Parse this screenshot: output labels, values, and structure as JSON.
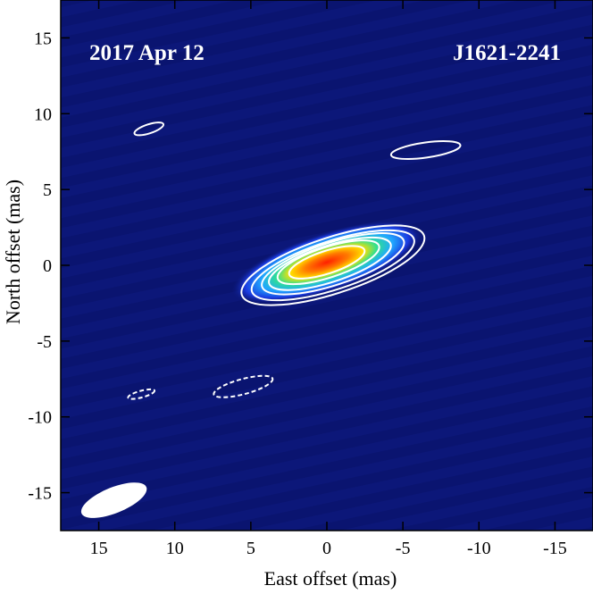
{
  "chart_data": {
    "type": "heatmap",
    "title": "",
    "xlabel": "East offset (mas)",
    "ylabel": "North offset (mas)",
    "xlim": [
      17.5,
      -17.5
    ],
    "ylim": [
      -17.5,
      17.5
    ],
    "x_ticks": [
      15,
      10,
      5,
      0,
      -5,
      -10,
      -15
    ],
    "y_ticks": [
      15,
      10,
      5,
      0,
      -5,
      -10,
      -15
    ],
    "x_tick_labels": [
      "15",
      "10",
      "5",
      "0",
      "-5",
      "-10",
      "-15"
    ],
    "y_tick_labels": [
      "15",
      "10",
      "5",
      "0",
      "-5",
      "-10",
      "-15"
    ],
    "annotations": {
      "date": "2017 Apr 12",
      "source": "J1621-2241"
    },
    "background_color": "#0a1470",
    "source_component": {
      "x": 0.0,
      "y": 0.2,
      "peak_color": "#ff2000"
    },
    "colormap": [
      "#0a1470",
      "#1b3ae0",
      "#20a8ff",
      "#30e090",
      "#ffe000",
      "#ff7a00",
      "#ff2000"
    ],
    "contours": [
      {
        "level": 1,
        "rx": 6.3,
        "ry": 1.85,
        "angle_deg": 18,
        "x": -0.4,
        "y": 0.0
      },
      {
        "level": 2,
        "rx": 5.6,
        "ry": 1.6,
        "angle_deg": 18,
        "x": -0.4,
        "y": 0.0
      },
      {
        "level": 3,
        "rx": 4.9,
        "ry": 1.4,
        "angle_deg": 18,
        "x": -0.4,
        "y": 0.1
      },
      {
        "level": 4,
        "rx": 4.2,
        "ry": 1.2,
        "angle_deg": 18,
        "x": -0.2,
        "y": 0.1
      },
      {
        "level": 5,
        "rx": 3.5,
        "ry": 1.0,
        "angle_deg": 18,
        "x": -0.1,
        "y": 0.2
      },
      {
        "level": 6,
        "rx": 2.6,
        "ry": 0.75,
        "angle_deg": 18,
        "x": 0.0,
        "y": 0.2
      }
    ],
    "noise_contours": [
      {
        "x": 11.7,
        "y": 9.0,
        "rx": 1.0,
        "ry": 0.3,
        "angle_deg": 18,
        "dashed": false
      },
      {
        "x": -6.5,
        "y": 7.6,
        "rx": 2.3,
        "ry": 0.5,
        "angle_deg": 8,
        "dashed": false
      },
      {
        "x": 12.2,
        "y": -8.5,
        "rx": 0.9,
        "ry": 0.22,
        "angle_deg": 15,
        "dashed": true
      },
      {
        "x": 5.5,
        "y": -8.0,
        "rx": 2.0,
        "ry": 0.5,
        "angle_deg": 15,
        "dashed": true
      }
    ],
    "beam": {
      "x": 14.0,
      "y": -15.5,
      "rx": 2.3,
      "ry": 0.85,
      "angle_deg": 22
    },
    "grid": false,
    "legend": "none"
  }
}
